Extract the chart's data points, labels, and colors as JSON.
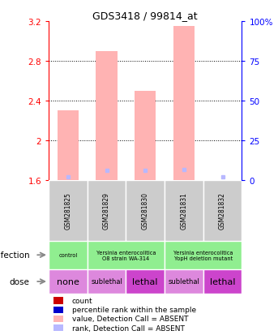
{
  "title": "GDS3418 / 99814_at",
  "samples": [
    "GSM281825",
    "GSM281829",
    "GSM281830",
    "GSM281831",
    "GSM281832"
  ],
  "bar_values": [
    2.3,
    2.9,
    2.5,
    3.15,
    1.6
  ],
  "bar_bottom": 1.6,
  "rank_y": [
    1.635,
    1.7,
    1.7,
    1.71,
    1.635
  ],
  "ylim": [
    1.6,
    3.2
  ],
  "yticks": [
    1.6,
    2.0,
    2.4,
    2.8,
    3.2
  ],
  "ytick_labels": [
    "1.6",
    "2",
    "2.4",
    "2.8",
    "3.2"
  ],
  "y2ticks": [
    0,
    25,
    50,
    75,
    100
  ],
  "y2tick_labels": [
    "0",
    "25",
    "50",
    "75",
    "100%"
  ],
  "bar_color": "#ffb3b3",
  "rank_color": "#b8b8ff",
  "sample_bg": "#cccccc",
  "infection_spans": [
    {
      "start": 0,
      "end": 1,
      "label": "control",
      "color": "#90ee90"
    },
    {
      "start": 1,
      "end": 3,
      "label": "Yersinia enterocolitica\nO8 strain WA-314",
      "color": "#90ee90"
    },
    {
      "start": 3,
      "end": 5,
      "label": "Yersinia enterocolitica\nYopH deletion mutant",
      "color": "#90ee90"
    }
  ],
  "dose_labels": [
    "none",
    "sublethal",
    "lethal",
    "sublethal",
    "lethal"
  ],
  "dose_cell_colors": [
    "#dd88dd",
    "#dd88dd",
    "#cc44cc",
    "#dd88dd",
    "#cc44cc"
  ],
  "legend_items": [
    {
      "label": "count",
      "color": "#cc0000"
    },
    {
      "label": "percentile rank within the sample",
      "color": "#0000cc"
    },
    {
      "label": "value, Detection Call = ABSENT",
      "color": "#ffb3b3"
    },
    {
      "label": "rank, Detection Call = ABSENT",
      "color": "#b8b8ff"
    }
  ]
}
